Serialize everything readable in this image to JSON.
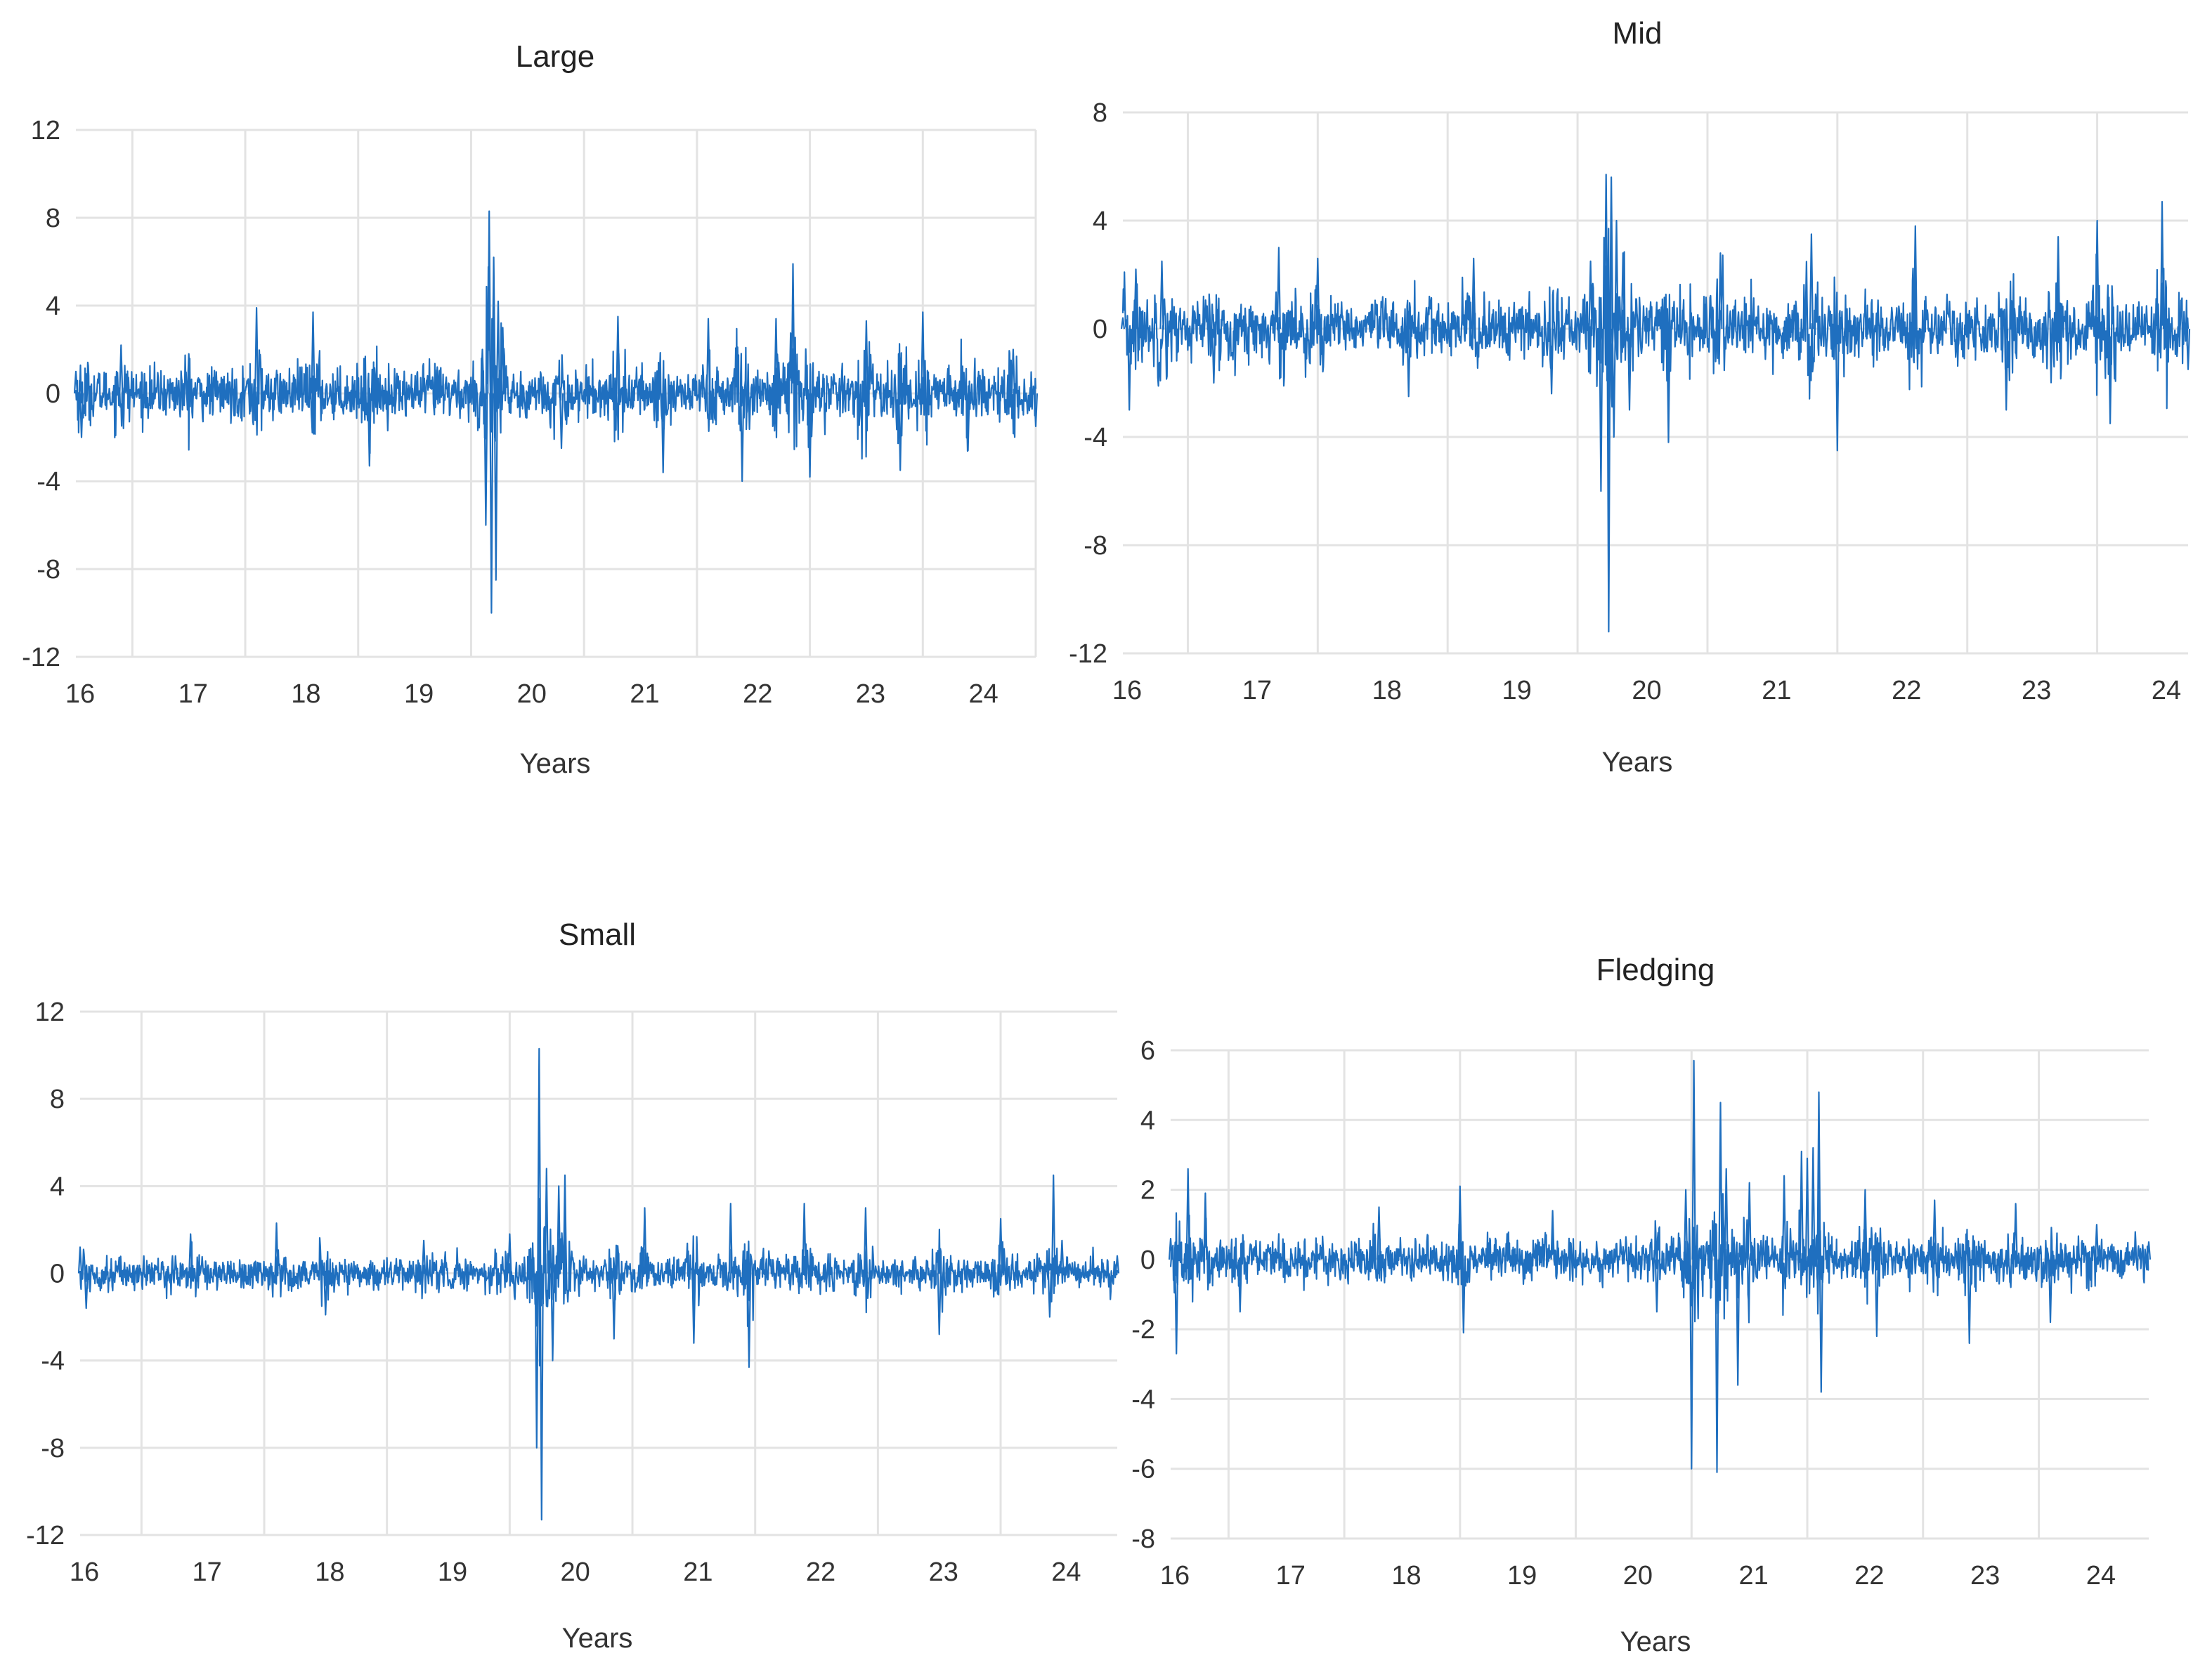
{
  "chart_data": [
    {
      "type": "line",
      "title": "Large",
      "xlabel": "Years",
      "ylabel": "",
      "ylim": [
        -12,
        12
      ],
      "yticks": [
        -12,
        -8,
        -4,
        0,
        4,
        8,
        12
      ],
      "ytick_labels": [
        "-12",
        "-8",
        "-4",
        "0",
        "4",
        "8",
        "12"
      ],
      "xlim": [
        16,
        24.5
      ],
      "xticks": [
        16,
        17,
        18,
        19,
        20,
        21,
        22,
        23,
        24
      ],
      "xtick_labels": [
        "16",
        "17",
        "18",
        "19",
        "20",
        "21",
        "22",
        "23",
        "24"
      ],
      "grid": "vertical",
      "color": "#1f6fbf",
      "series": [
        {
          "base_volatility": 0.9,
          "x": [
            16.0,
            16.05,
            16.4,
            17.0,
            17.6,
            18.1,
            18.6,
            19.2,
            19.6,
            19.63,
            19.66,
            19.68,
            19.7,
            19.72,
            19.74,
            19.78,
            20.3,
            20.8,
            21.2,
            21.6,
            21.9,
            22.2,
            22.35,
            22.5,
            23.0,
            23.3,
            23.5,
            23.9,
            24.3,
            24.5
          ],
          "y": [
            1.0,
            -2.0,
            2.2,
            1.8,
            3.9,
            3.7,
            -3.3,
            1.2,
            2.0,
            -6.0,
            8.3,
            -10.0,
            6.2,
            -8.5,
            4.2,
            3.0,
            -2.5,
            3.5,
            -3.6,
            3.4,
            -4.0,
            3.4,
            5.9,
            -3.8,
            3.3,
            -3.5,
            3.7,
            -2.6,
            2.0,
            -1.5
          ]
        }
      ]
    },
    {
      "type": "line",
      "title": "Mid",
      "xlabel": "Years",
      "ylabel": "",
      "ylim": [
        -12,
        8
      ],
      "yticks": [
        -12,
        -8,
        -4,
        0,
        4,
        8
      ],
      "ytick_labels": [
        "-12",
        "-8",
        "-4",
        "0",
        "4",
        "8"
      ],
      "xlim": [
        16,
        24.2
      ],
      "xticks": [
        16,
        17,
        18,
        19,
        20,
        21,
        22,
        23,
        24
      ],
      "xtick_labels": [
        "16",
        "17",
        "18",
        "19",
        "20",
        "21",
        "22",
        "23",
        "24"
      ],
      "grid": "vertical",
      "color": "#1f6fbf",
      "series": [
        {
          "base_volatility": 0.85,
          "x": [
            16.0,
            16.05,
            16.1,
            16.3,
            16.7,
            17.2,
            17.5,
            18.2,
            18.7,
            19.3,
            19.6,
            19.68,
            19.72,
            19.74,
            19.76,
            19.78,
            19.8,
            19.85,
            19.9,
            20.2,
            20.6,
            21.3,
            21.5,
            22.1,
            22.8,
            23.2,
            23.5,
            23.6,
            24.0,
            24.2
          ],
          "y": [
            0.4,
            -3.0,
            2.2,
            2.5,
            -2.0,
            3.0,
            2.6,
            -2.5,
            2.6,
            -2.4,
            2.5,
            -6.0,
            5.7,
            -11.2,
            5.6,
            -4.0,
            4.0,
            2.8,
            -3.0,
            -4.2,
            2.8,
            3.5,
            -4.5,
            3.8,
            -3.0,
            3.4,
            4.0,
            -3.5,
            4.7,
            -1.5
          ]
        }
      ]
    },
    {
      "type": "line",
      "title": "Small",
      "xlabel": "Years",
      "ylabel": "",
      "ylim": [
        -12,
        12
      ],
      "yticks": [
        -12,
        -8,
        -4,
        0,
        4,
        8,
        12
      ],
      "ytick_labels": [
        "-12",
        "-8",
        "-4",
        "0",
        "4",
        "8",
        "12"
      ],
      "xlim": [
        16,
        24.45
      ],
      "xticks": [
        16,
        17,
        18,
        19,
        20,
        21,
        22,
        23,
        24
      ],
      "xtick_labels": [
        "16",
        "17",
        "18",
        "19",
        "20",
        "21",
        "22",
        "23",
        "24"
      ],
      "grid": "vertical",
      "color": "#1f6fbf",
      "series": [
        {
          "base_volatility": 0.6,
          "x": [
            16.0,
            16.05,
            16.9,
            17.6,
            18.0,
            18.8,
            19.5,
            19.72,
            19.74,
            19.76,
            19.8,
            19.85,
            19.9,
            19.95,
            20.35,
            20.6,
            21.0,
            21.3,
            21.45,
            21.9,
            22.4,
            23.0,
            23.5,
            23.9,
            23.93,
            24.0,
            24.45
          ],
          "y": [
            1.2,
            -1.6,
            1.8,
            2.3,
            -1.9,
            1.5,
            1.8,
            -8.0,
            10.3,
            -11.3,
            4.8,
            -4.0,
            4.0,
            4.5,
            -3.0,
            3.0,
            -3.2,
            3.2,
            -4.3,
            3.2,
            3.0,
            -2.8,
            2.5,
            -2.0,
            4.5,
            1.5,
            0.8
          ]
        }
      ]
    },
    {
      "type": "line",
      "title": "Fledging",
      "xlabel": "Years",
      "ylabel": "",
      "ylim": [
        -8,
        6
      ],
      "yticks": [
        -8,
        -6,
        -4,
        -2,
        0,
        2,
        4,
        6
      ],
      "ytick_labels": [
        "-8",
        "-6",
        "-4",
        "-2",
        "0",
        "2",
        "4",
        "6"
      ],
      "xlim": [
        16,
        24.45
      ],
      "xticks": [
        16,
        17,
        18,
        19,
        20,
        21,
        22,
        23,
        24
      ],
      "xtick_labels": [
        "16",
        "17",
        "18",
        "19",
        "20",
        "21",
        "22",
        "23",
        "24"
      ],
      "grid": "vertical",
      "color": "#1f6fbf",
      "series": [
        {
          "base_volatility": 0.5,
          "x": [
            16.0,
            16.05,
            16.15,
            16.3,
            16.6,
            17.8,
            18.5,
            18.53,
            19.3,
            20.2,
            20.45,
            20.5,
            20.52,
            20.72,
            20.75,
            20.8,
            20.9,
            21.0,
            21.3,
            21.45,
            21.5,
            21.55,
            21.6,
            21.62,
            22.0,
            22.1,
            22.6,
            22.9,
            23.3,
            23.6,
            24.0,
            24.45
          ],
          "y": [
            0.6,
            -2.7,
            2.6,
            1.9,
            -1.5,
            1.5,
            2.1,
            -2.1,
            1.4,
            -1.5,
            2.0,
            -6.0,
            5.7,
            -6.1,
            4.5,
            2.6,
            -3.6,
            2.2,
            2.4,
            3.1,
            2.9,
            3.2,
            4.8,
            -3.8,
            2.0,
            -2.2,
            1.7,
            -2.4,
            1.6,
            -1.8,
            1.0,
            0.5
          ]
        }
      ]
    }
  ]
}
